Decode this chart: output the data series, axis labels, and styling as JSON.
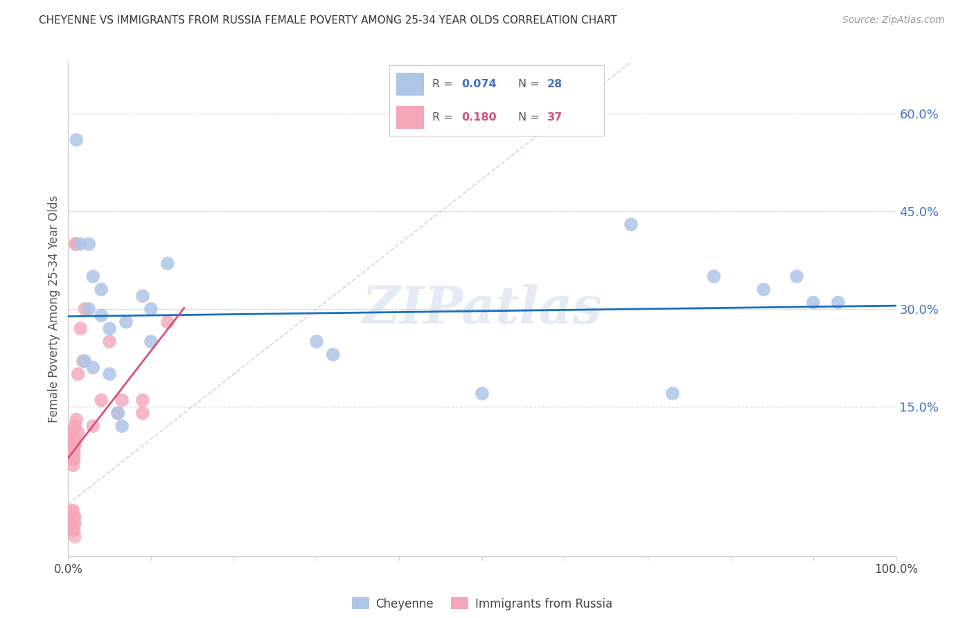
{
  "title": "CHEYENNE VS IMMIGRANTS FROM RUSSIA FEMALE POVERTY AMONG 25-34 YEAR OLDS CORRELATION CHART",
  "source": "Source: ZipAtlas.com",
  "ylabel": "Female Poverty Among 25-34 Year Olds",
  "ytick_labels": [
    "15.0%",
    "30.0%",
    "45.0%",
    "60.0%"
  ],
  "ytick_values": [
    0.15,
    0.3,
    0.45,
    0.6
  ],
  "xlim": [
    0.0,
    1.0
  ],
  "ylim": [
    -0.08,
    0.68
  ],
  "cheyenne_color": "#aec6e8",
  "russia_color": "#f4a7b9",
  "trendline_blue_color": "#1a6fba",
  "trendline_pink_color": "#d94f7a",
  "diagonal_color": "#e8c8cc",
  "watermark": "ZIPatlas",
  "watermark_color": "#ccd8ea",
  "background_color": "#ffffff",
  "cheyenne_x": [
    0.01,
    0.015,
    0.02,
    0.025,
    0.025,
    0.03,
    0.03,
    0.04,
    0.04,
    0.05,
    0.05,
    0.06,
    0.065,
    0.07,
    0.09,
    0.1,
    0.1,
    0.12,
    0.3,
    0.32,
    0.5,
    0.68,
    0.73,
    0.78,
    0.84,
    0.88,
    0.9,
    0.93
  ],
  "cheyenne_y": [
    0.56,
    0.4,
    0.22,
    0.3,
    0.4,
    0.21,
    0.35,
    0.29,
    0.33,
    0.2,
    0.27,
    0.14,
    0.12,
    0.28,
    0.32,
    0.3,
    0.25,
    0.37,
    0.25,
    0.23,
    0.17,
    0.43,
    0.17,
    0.35,
    0.33,
    0.35,
    0.31,
    0.31
  ],
  "russia_x": [
    0.002,
    0.003,
    0.003,
    0.004,
    0.004,
    0.004,
    0.005,
    0.005,
    0.005,
    0.005,
    0.005,
    0.006,
    0.006,
    0.006,
    0.007,
    0.007,
    0.007,
    0.007,
    0.008,
    0.008,
    0.008,
    0.009,
    0.009,
    0.01,
    0.012,
    0.012,
    0.015,
    0.018,
    0.02,
    0.03,
    0.04,
    0.05,
    0.06,
    0.065,
    0.09,
    0.09,
    0.12
  ],
  "russia_y": [
    0.09,
    0.1,
    0.11,
    0.07,
    0.08,
    0.09,
    0.07,
    0.08,
    0.09,
    0.1,
    0.11,
    0.06,
    0.07,
    0.08,
    0.07,
    0.08,
    0.09,
    0.1,
    0.09,
    0.1,
    0.12,
    0.4,
    0.4,
    0.13,
    0.11,
    0.2,
    0.27,
    0.22,
    0.3,
    0.12,
    0.16,
    0.25,
    0.14,
    0.16,
    0.14,
    0.16,
    0.28
  ],
  "russia_neg_x": [
    0.003,
    0.004,
    0.005,
    0.005,
    0.006,
    0.006,
    0.006,
    0.007,
    0.007,
    0.007,
    0.008,
    0.008,
    0.008
  ],
  "russia_neg_y": [
    -0.02,
    -0.02,
    -0.01,
    -0.03,
    -0.04,
    -0.02,
    -0.01,
    -0.04,
    -0.03,
    -0.02,
    -0.05,
    -0.03,
    -0.02
  ]
}
